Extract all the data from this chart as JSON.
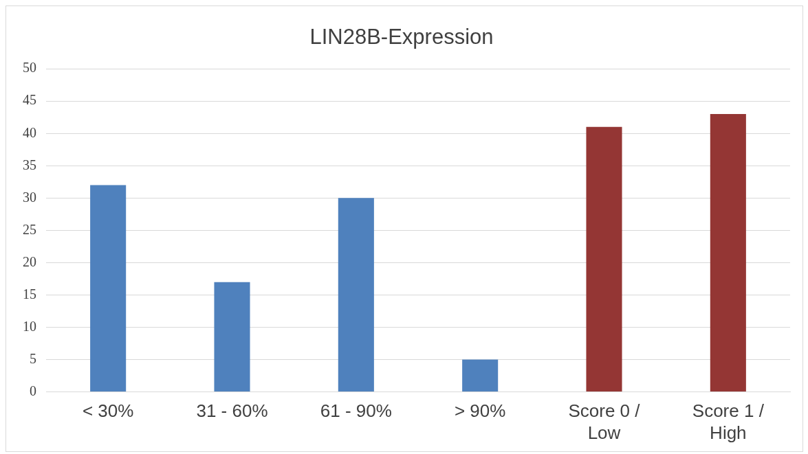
{
  "chart_data": {
    "type": "bar",
    "title": "LIN28B-Expression",
    "categories": [
      "< 30%",
      "31 - 60%",
      "61 - 90%",
      "> 90%",
      "Score 0 / Low",
      "Score 1 / High"
    ],
    "values": [
      32,
      17,
      30,
      5,
      41,
      43
    ],
    "colors": [
      "#4f81bd",
      "#4f81bd",
      "#4f81bd",
      "#4f81bd",
      "#943634",
      "#943634"
    ],
    "ylim": [
      0,
      50
    ],
    "yticks": [
      0,
      5,
      10,
      15,
      20,
      25,
      30,
      35,
      40,
      45,
      50
    ],
    "grid": "y",
    "legend": false
  }
}
